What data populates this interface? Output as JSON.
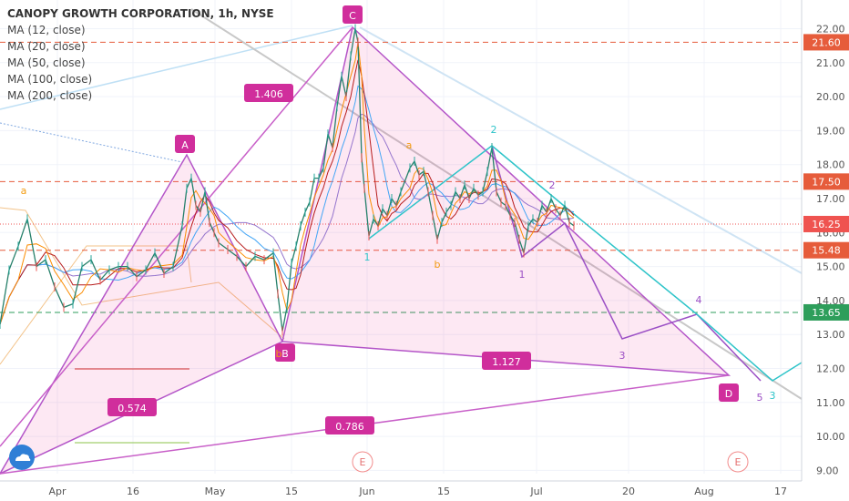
{
  "chart_data": {
    "type": "line",
    "title": "CANOPY GROWTH CORPORATION, 1h, NYSE",
    "indicators": [
      "MA (12, close)",
      "MA (20, close)",
      "MA (50, close)",
      "MA (100, close)",
      "MA (200, close)"
    ],
    "y_ticks": [
      "22.00",
      "21.00",
      "20.00",
      "19.00",
      "18.00",
      "17.00",
      "16.00",
      "15.00",
      "14.00",
      "13.00",
      "12.00",
      "11.00",
      "10.00",
      "9.00"
    ],
    "x_ticks": [
      "Apr",
      "16",
      "May",
      "15",
      "Jun",
      "15",
      "Jul",
      "20",
      "Aug",
      "17"
    ],
    "ylim": [
      9.0,
      22.6
    ],
    "price_levels": [
      {
        "value": 21.6,
        "label": "21.60",
        "color": "#e65c3b"
      },
      {
        "value": 17.5,
        "label": "17.50",
        "color": "#e65c3b"
      },
      {
        "value": 16.25,
        "label": "16.25",
        "color": "#ef5350"
      },
      {
        "value": 15.48,
        "label": "15.48",
        "color": "#e65c3b"
      },
      {
        "value": 13.65,
        "label": "13.65",
        "color": "#2e9e5b"
      }
    ],
    "harmonic_pattern": {
      "points": [
        {
          "label": "A",
          "value": 18.3
        },
        {
          "label": "B",
          "value": 12.95
        },
        {
          "label": "C",
          "value": 22.1
        },
        {
          "label": "D",
          "value": 11.75
        }
      ],
      "ratios": [
        "1.406",
        "1.127",
        "0.574",
        "0.786"
      ]
    },
    "wave_labels": [
      "a",
      "b",
      "a",
      "b",
      "1",
      "2",
      "3",
      "4",
      "5",
      "1",
      "2",
      "3"
    ],
    "event_markers": [
      "E",
      "E"
    ],
    "price_series": [
      [
        0,
        13.3
      ],
      [
        10,
        14.9
      ],
      [
        20,
        15.6
      ],
      [
        30,
        16.4
      ],
      [
        40,
        15.0
      ],
      [
        50,
        15.2
      ],
      [
        60,
        14.4
      ],
      [
        70,
        13.8
      ],
      [
        80,
        13.9
      ],
      [
        90,
        15.0
      ],
      [
        100,
        15.2
      ],
      [
        110,
        14.6
      ],
      [
        120,
        14.9
      ],
      [
        130,
        15.0
      ],
      [
        140,
        15.0
      ],
      [
        150,
        14.7
      ],
      [
        160,
        14.9
      ],
      [
        170,
        15.4
      ],
      [
        180,
        14.8
      ],
      [
        190,
        15.0
      ],
      [
        200,
        16.2
      ],
      [
        205,
        17.3
      ],
      [
        210,
        17.6
      ],
      [
        215,
        16.8
      ],
      [
        220,
        16.6
      ],
      [
        225,
        17.2
      ],
      [
        230,
        16.3
      ],
      [
        235,
        16.0
      ],
      [
        240,
        15.7
      ],
      [
        250,
        15.5
      ],
      [
        260,
        15.3
      ],
      [
        270,
        15.0
      ],
      [
        280,
        15.3
      ],
      [
        290,
        15.2
      ],
      [
        300,
        15.4
      ],
      [
        305,
        14.2
      ],
      [
        310,
        13.1
      ],
      [
        315,
        13.8
      ],
      [
        320,
        15.1
      ],
      [
        325,
        15.6
      ],
      [
        330,
        16.2
      ],
      [
        335,
        16.6
      ],
      [
        340,
        16.9
      ],
      [
        345,
        17.6
      ],
      [
        350,
        17.6
      ],
      [
        355,
        17.9
      ],
      [
        360,
        18.9
      ],
      [
        365,
        18.5
      ],
      [
        370,
        19.7
      ],
      [
        375,
        20.6
      ],
      [
        380,
        20.0
      ],
      [
        385,
        21.2
      ],
      [
        390,
        22.0
      ],
      [
        393,
        21.6
      ],
      [
        397,
        18.2
      ],
      [
        400,
        17.3
      ],
      [
        405,
        15.9
      ],
      [
        410,
        16.4
      ],
      [
        415,
        16.2
      ],
      [
        420,
        16.7
      ],
      [
        425,
        16.5
      ],
      [
        430,
        17.0
      ],
      [
        435,
        16.8
      ],
      [
        440,
        17.2
      ],
      [
        450,
        17.9
      ],
      [
        455,
        18.1
      ],
      [
        460,
        17.7
      ],
      [
        465,
        17.8
      ],
      [
        470,
        17.2
      ],
      [
        475,
        16.5
      ],
      [
        480,
        15.8
      ],
      [
        485,
        16.3
      ],
      [
        490,
        16.6
      ],
      [
        495,
        16.8
      ],
      [
        500,
        17.2
      ],
      [
        505,
        17.0
      ],
      [
        510,
        17.4
      ],
      [
        515,
        17.0
      ],
      [
        520,
        17.3
      ],
      [
        525,
        17.1
      ],
      [
        530,
        17.2
      ],
      [
        535,
        17.8
      ],
      [
        540,
        18.5
      ],
      [
        545,
        17.2
      ],
      [
        550,
        16.9
      ],
      [
        555,
        16.8
      ],
      [
        560,
        16.5
      ],
      [
        565,
        16.3
      ],
      [
        570,
        15.8
      ],
      [
        575,
        15.4
      ],
      [
        580,
        16.2
      ],
      [
        585,
        16.4
      ],
      [
        590,
        16.3
      ],
      [
        595,
        16.8
      ],
      [
        600,
        16.6
      ],
      [
        605,
        17.0
      ],
      [
        610,
        16.7
      ],
      [
        615,
        16.5
      ],
      [
        620,
        16.8
      ],
      [
        625,
        16.3
      ],
      [
        630,
        16.2
      ]
    ],
    "grid": true
  }
}
